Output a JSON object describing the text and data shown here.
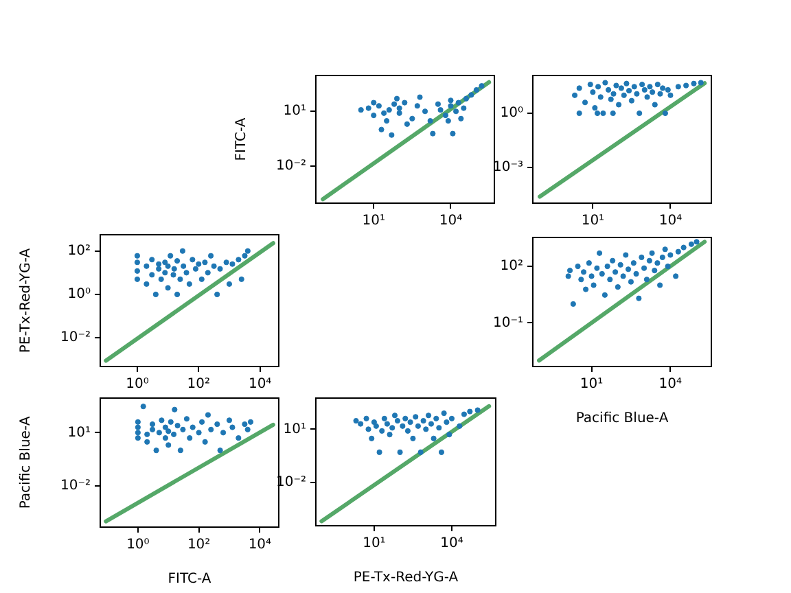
{
  "chart_data": [
    {
      "type": "scatter",
      "ylabel": "FITC-A",
      "log": "xy",
      "xlim": [
        0.056,
        500000
      ],
      "ylim": [
        9.1e-05,
        930
      ],
      "xticks": [
        {
          "value": 10,
          "label": "10¹"
        },
        {
          "value": 10000,
          "label": "10⁴"
        }
      ],
      "yticks": [
        {
          "value": 0.01,
          "label": "10⁻²"
        },
        {
          "value": 10,
          "label": "10¹"
        }
      ],
      "series": [
        {
          "type": "scatter",
          "marker": "circle",
          "color": "#1f77b4",
          "x": [
            3.2,
            10,
            16,
            32,
            40,
            63,
            100,
            100,
            160,
            20,
            50,
            316,
            500,
            1000,
            1600,
            3200,
            4000,
            6300,
            10000,
            10000,
            16000,
            20000,
            32000,
            40000,
            63000,
            100000,
            160000,
            10,
            200,
            2000,
            12000,
            8000,
            80,
            630,
            25000,
            6.3,
            25
          ],
          "values": [
            12,
            6,
            20,
            3,
            12,
            25,
            8,
            15,
            30,
            1,
            0.5,
            4,
            20,
            10,
            3,
            25,
            12,
            6,
            20,
            40,
            10,
            30,
            15,
            50,
            80,
            150,
            250,
            30,
            2,
            0.6,
            0.6,
            3,
            50,
            60,
            4,
            15,
            8
          ]
        },
        {
          "type": "line",
          "marker": "none",
          "color": "#55a868",
          "x": [
            0.105,
            309000
          ],
          "values": [
            0.00015,
            400
          ]
        }
      ]
    },
    {
      "type": "scatter",
      "log": "xy",
      "xlim": [
        0.048,
        380000
      ],
      "ylim": [
        1e-05,
        126
      ],
      "xticks": [
        {
          "value": 10,
          "label": "10¹"
        },
        {
          "value": 10000,
          "label": "10⁴"
        }
      ],
      "yticks": [
        {
          "value": 0.001,
          "label": "10⁻³"
        },
        {
          "value": 1,
          "label": "10⁰"
        }
      ],
      "series": [
        {
          "type": "scatter",
          "marker": "circle",
          "color": "#1f77b4",
          "x": [
            2,
            3,
            5,
            8,
            10,
            12,
            16,
            20,
            25,
            30,
            40,
            50,
            63,
            80,
            100,
            126,
            160,
            200,
            250,
            316,
            400,
            500,
            630,
            800,
            1000,
            1260,
            1600,
            2000,
            2500,
            3200,
            4000,
            5000,
            6300,
            8000,
            10000,
            20000,
            40000,
            80000,
            150000,
            3,
            15,
            60
          ],
          "values": [
            10,
            25,
            4,
            40,
            15,
            2,
            30,
            8,
            1,
            50,
            20,
            6,
            12,
            35,
            3,
            25,
            10,
            45,
            18,
            5,
            30,
            12,
            1,
            40,
            20,
            8,
            30,
            15,
            3,
            40,
            12,
            25,
            1,
            20,
            10,
            30,
            35,
            45,
            50,
            1,
            1,
            1
          ]
        },
        {
          "type": "line",
          "marker": "none",
          "color": "#55a868",
          "x": [
            0.089,
            209000
          ],
          "values": [
            2.3e-05,
            47
          ]
        }
      ]
    },
    {
      "type": "scatter",
      "ylabel": "PE-Tx-Red-YG-A",
      "log": "xy",
      "xlim": [
        0.062,
        41000
      ],
      "ylim": [
        0.00048,
        560
      ],
      "xticks": [
        {
          "value": 1,
          "label": "10⁰"
        },
        {
          "value": 100,
          "label": "10²"
        },
        {
          "value": 10000,
          "label": "10⁴"
        }
      ],
      "yticks": [
        {
          "value": 0.01,
          "label": "10⁻²"
        },
        {
          "value": 1,
          "label": "10⁰"
        },
        {
          "value": 100,
          "label": "10²"
        }
      ],
      "series": [
        {
          "type": "scatter",
          "marker": "circle",
          "color": "#1f77b4",
          "x": [
            1,
            1,
            1,
            1,
            2,
            2,
            3,
            3,
            4,
            5,
            5,
            6,
            8,
            8,
            10,
            10,
            12,
            15,
            16,
            20,
            20,
            25,
            30,
            32,
            40,
            50,
            63,
            80,
            100,
            126,
            160,
            200,
            250,
            316,
            400,
            500,
            800,
            1000,
            1260,
            2000,
            2500,
            3200,
            4000
          ],
          "values": [
            5,
            12,
            30,
            60,
            3,
            20,
            8,
            40,
            1,
            15,
            25,
            5,
            10,
            30,
            2,
            20,
            60,
            8,
            15,
            1,
            35,
            5,
            100,
            20,
            10,
            3,
            40,
            15,
            25,
            5,
            30,
            10,
            60,
            20,
            1,
            15,
            30,
            3,
            25,
            40,
            5,
            60,
            100
          ]
        },
        {
          "type": "line",
          "marker": "none",
          "color": "#55a868",
          "x": [
            0.095,
            27000
          ],
          "values": [
            0.00089,
            230
          ]
        }
      ]
    },
    {
      "type": "scatter",
      "xlabel": "Pacific Blue-A",
      "log": "xy",
      "xlim": [
        0.058,
        363000
      ],
      "ylim": [
        0.00048,
        3400
      ],
      "xticks": [
        {
          "value": 10,
          "label": "10¹"
        },
        {
          "value": 10000,
          "label": "10⁴"
        }
      ],
      "yticks": [
        {
          "value": 0.1,
          "label": "10⁻¹"
        },
        {
          "value": 100,
          "label": "10²"
        }
      ],
      "series": [
        {
          "type": "scatter",
          "marker": "circle",
          "color": "#1f77b4",
          "x": [
            1.3,
            1.5,
            2,
            3,
            4,
            5,
            6,
            8,
            10,
            12,
            16,
            20,
            25,
            32,
            40,
            50,
            63,
            80,
            100,
            126,
            160,
            200,
            250,
            316,
            400,
            500,
            630,
            800,
            1000,
            1260,
            1600,
            2000,
            2500,
            3200,
            4000,
            5000,
            6300,
            8000,
            10000,
            16000,
            20000,
            32000,
            63000,
            100000
          ],
          "values": [
            30,
            60,
            1,
            100,
            20,
            50,
            6,
            150,
            30,
            10,
            80,
            500,
            40,
            3,
            100,
            20,
            200,
            50,
            8,
            120,
            30,
            400,
            70,
            15,
            150,
            40,
            2,
            300,
            80,
            20,
            200,
            500,
            60,
            150,
            10,
            300,
            800,
            100,
            400,
            30,
            600,
            1000,
            1500,
            2000
          ]
        },
        {
          "type": "line",
          "marker": "none",
          "color": "#55a868",
          "x": [
            0.1,
            200000
          ],
          "values": [
            0.001,
            2000
          ]
        }
      ]
    },
    {
      "type": "scatter",
      "xlabel": "FITC-A",
      "ylabel": "Pacific Blue-A",
      "log": "xy",
      "xlim": [
        0.058,
        42000
      ],
      "ylim": [
        4.7e-05,
        890
      ],
      "xticks": [
        {
          "value": 1,
          "label": "10⁰"
        },
        {
          "value": 100,
          "label": "10²"
        },
        {
          "value": 10000,
          "label": "10⁴"
        }
      ],
      "yticks": [
        {
          "value": 0.01,
          "label": "10⁻²"
        },
        {
          "value": 10,
          "label": "10¹"
        }
      ],
      "series": [
        {
          "type": "scatter",
          "marker": "circle",
          "color": "#1f77b4",
          "x": [
            1,
            1,
            1,
            1,
            1.5,
            2,
            2,
            3,
            3,
            4,
            5,
            6,
            8,
            8,
            10,
            10,
            12,
            16,
            15,
            20,
            25,
            30,
            40,
            50,
            63,
            100,
            126,
            160,
            200,
            250,
            400,
            500,
            630,
            1000,
            1260,
            2000,
            3200,
            4000,
            5000
          ],
          "values": [
            5,
            10,
            20,
            40,
            300,
            8,
            3,
            15,
            30,
            1,
            10,
            50,
            5,
            20,
            12,
            2,
            40,
            200,
            8,
            25,
            1,
            15,
            60,
            5,
            20,
            10,
            40,
            3,
            100,
            15,
            30,
            1,
            10,
            50,
            20,
            5,
            30,
            15,
            40
          ]
        },
        {
          "type": "line",
          "marker": "none",
          "color": "#55a868",
          "x": [
            0.089,
            27500
          ],
          "values": [
            0.0001,
            28
          ]
        }
      ]
    },
    {
      "type": "scatter",
      "xlabel": "PE-Tx-Red-YG-A",
      "log": "xy",
      "xlim": [
        0.056,
        500000
      ],
      "ylim": [
        3.5e-05,
        575
      ],
      "xticks": [
        {
          "value": 10,
          "label": "10¹"
        },
        {
          "value": 10000,
          "label": "10⁴"
        }
      ],
      "yticks": [
        {
          "value": 0.01,
          "label": "10⁻²"
        },
        {
          "value": 10,
          "label": "10¹"
        }
      ],
      "series": [
        {
          "type": "scatter",
          "marker": "circle",
          "color": "#1f77b4",
          "x": [
            2,
            3,
            5,
            6,
            8,
            10,
            12,
            16,
            20,
            25,
            32,
            40,
            50,
            63,
            80,
            100,
            126,
            160,
            200,
            250,
            316,
            400,
            500,
            630,
            800,
            1000,
            1260,
            1600,
            2000,
            2500,
            3200,
            4000,
            5000,
            6300,
            8000,
            10000,
            20000,
            30000,
            50000,
            100000
          ],
          "values": [
            30,
            20,
            40,
            10,
            3,
            25,
            15,
            0.5,
            8,
            40,
            20,
            5,
            12,
            60,
            30,
            0.5,
            15,
            40,
            8,
            25,
            3,
            50,
            15,
            0.5,
            30,
            10,
            60,
            20,
            3,
            40,
            12,
            0.5,
            80,
            25,
            5,
            40,
            15,
            70,
            100,
            120
          ]
        },
        {
          "type": "line",
          "marker": "none",
          "color": "#55a868",
          "x": [
            0.093,
            275000
          ],
          "values": [
            6.3e-05,
            200
          ]
        }
      ]
    }
  ]
}
